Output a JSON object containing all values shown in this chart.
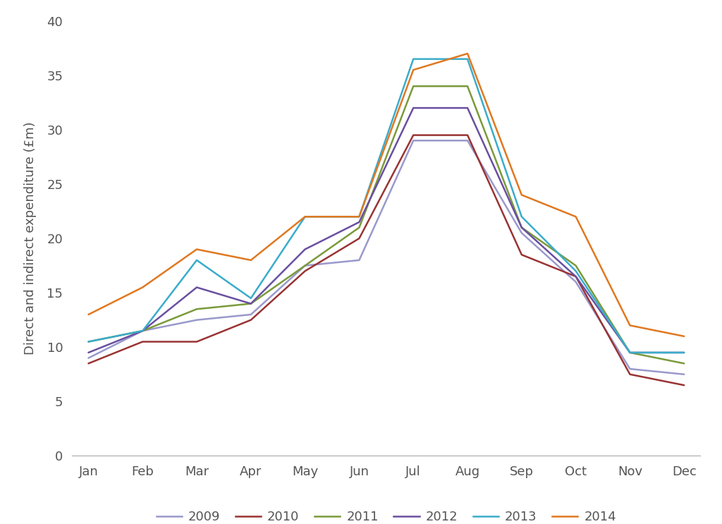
{
  "months": [
    "Jan",
    "Feb",
    "Mar",
    "Apr",
    "May",
    "Jun",
    "Jul",
    "Aug",
    "Sep",
    "Oct",
    "Nov",
    "Dec"
  ],
  "series": {
    "2009": [
      9.0,
      11.5,
      12.5,
      13.0,
      17.5,
      18.0,
      29.0,
      29.0,
      20.5,
      16.0,
      8.0,
      7.5
    ],
    "2010": [
      8.5,
      10.5,
      10.5,
      12.5,
      17.0,
      20.0,
      29.5,
      29.5,
      18.5,
      16.5,
      7.5,
      6.5
    ],
    "2011": [
      10.5,
      11.5,
      13.5,
      14.0,
      17.5,
      21.0,
      34.0,
      34.0,
      21.0,
      17.5,
      9.5,
      8.5
    ],
    "2012": [
      9.5,
      11.5,
      15.5,
      14.0,
      19.0,
      21.5,
      32.0,
      32.0,
      21.0,
      16.5,
      9.5,
      9.5
    ],
    "2013": [
      10.5,
      11.5,
      18.0,
      14.5,
      22.0,
      22.0,
      36.5,
      36.5,
      22.0,
      17.0,
      9.5,
      9.5
    ],
    "2014": [
      13.0,
      15.5,
      19.0,
      18.0,
      22.0,
      22.0,
      35.5,
      37.0,
      24.0,
      22.0,
      12.0,
      11.0
    ]
  },
  "colors": {
    "2009": "#9999CC",
    "2010": "#993333",
    "2011": "#7A9A3A",
    "2012": "#6A4FA0",
    "2013": "#3AACCB",
    "2014": "#E07820"
  },
  "ylabel": "Direct and indirect expenditure (£m)",
  "ylim": [
    0,
    40
  ],
  "yticks": [
    0,
    5,
    10,
    15,
    20,
    25,
    30,
    35,
    40
  ],
  "legend_labels": [
    "2009",
    "2010",
    "2011",
    "2012",
    "2013",
    "2014"
  ],
  "linewidth": 1.8,
  "background_color": "#ffffff",
  "spine_color": "#BBBBBB",
  "tick_color": "#555555",
  "label_fontsize": 13,
  "tick_fontsize": 13
}
